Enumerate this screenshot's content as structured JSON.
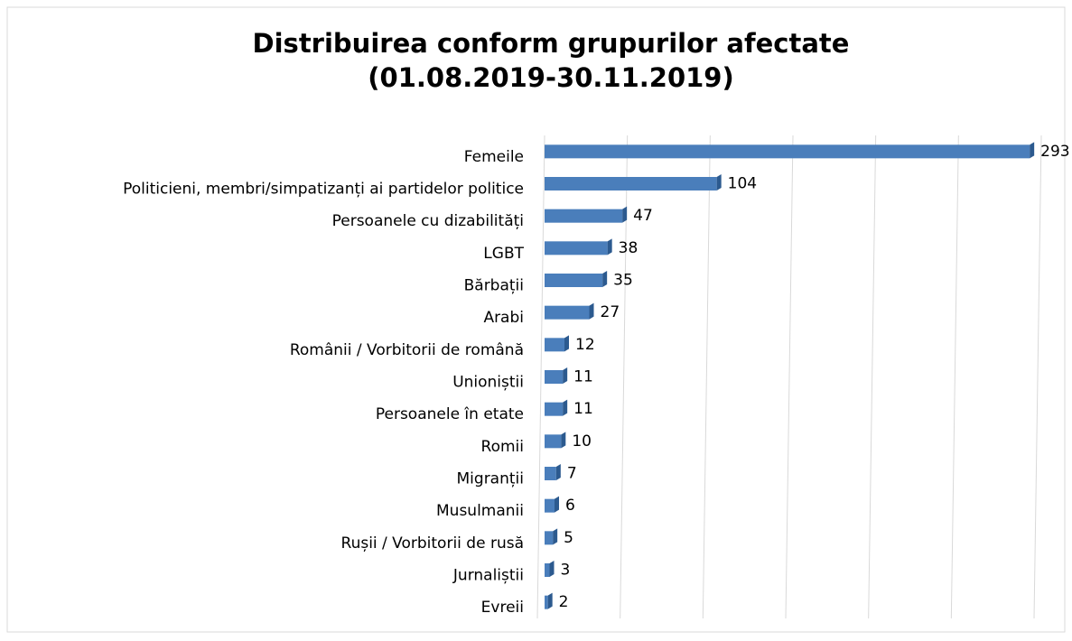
{
  "chart_data": {
    "type": "bar",
    "orientation": "horizontal",
    "title": [
      "Distribuirea conform grupurilor afectate",
      "(01.08.2019-30.11.2019)"
    ],
    "categories": [
      "Femeile",
      "Politicieni, membri/simpatizanți ai partidelor politice",
      "Persoanele cu dizabilități",
      "LGBT",
      "Bărbații",
      "Arabi",
      "Românii / Vorbitorii de română",
      "Unioniștii",
      "Persoanele în etate",
      "Romii",
      "Migranții",
      "Musulmanii",
      "Rușii  / Vorbitorii de rusă",
      "Jurnaliștii",
      "Evreii"
    ],
    "values": [
      293,
      104,
      47,
      38,
      35,
      27,
      12,
      11,
      11,
      10,
      7,
      6,
      5,
      3,
      2
    ],
    "color": "#4a7ebb",
    "xlim": [
      0,
      300
    ],
    "xticks": [
      0,
      50,
      100,
      150,
      200,
      250,
      300
    ],
    "grid": true
  }
}
